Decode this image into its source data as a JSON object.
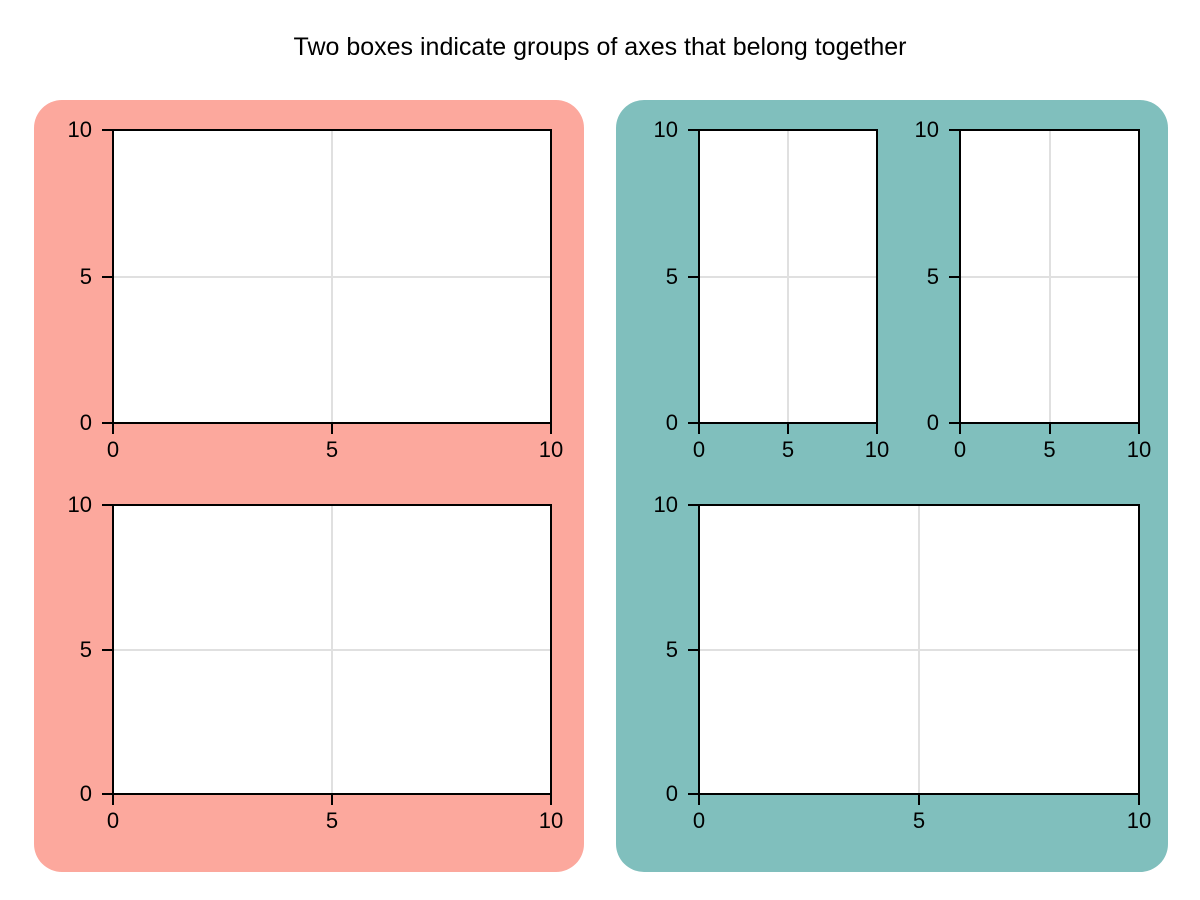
{
  "colors": {
    "background": "#FFFFFF",
    "title_text": "#000000",
    "tick_text": "#000000",
    "spine": "#000000",
    "grid": "#E0E0E0",
    "box_salmon": "#FCA89D",
    "box_teal": "#80BFBD"
  },
  "chart_data": {
    "type": "layout",
    "title": "Two boxes indicate groups of axes that belong together",
    "description": "Five empty axes arranged in two colored group boxes; all axes show x and y ranges 0 to 10 with ticks at 0, 5, 10 and light interior gridlines at 5.",
    "legend": null,
    "groups": [
      {
        "id": "group-1",
        "side": "left",
        "box_color": "#FCA89D",
        "axes_ids": [
          "ax1",
          "ax2"
        ]
      },
      {
        "id": "group-2",
        "side": "right",
        "box_color": "#80BFBD",
        "axes_ids": [
          "ax3",
          "ax4",
          "ax5"
        ]
      }
    ],
    "axes": [
      {
        "id": "ax1",
        "group": "group-1",
        "slot": "top",
        "xlim": [
          0,
          10
        ],
        "ylim": [
          0,
          10
        ],
        "xticks": [
          0,
          5,
          10
        ],
        "xticklabels": [
          "0",
          "5",
          "10"
        ],
        "yticks": [
          0,
          5,
          10
        ],
        "yticklabels": [
          "0",
          "5",
          "10"
        ],
        "grid": true,
        "series": []
      },
      {
        "id": "ax2",
        "group": "group-1",
        "slot": "bottom",
        "xlim": [
          0,
          10
        ],
        "ylim": [
          0,
          10
        ],
        "xticks": [
          0,
          5,
          10
        ],
        "xticklabels": [
          "0",
          "5",
          "10"
        ],
        "yticks": [
          0,
          5,
          10
        ],
        "yticklabels": [
          "0",
          "5",
          "10"
        ],
        "grid": true,
        "series": []
      },
      {
        "id": "ax3",
        "group": "group-2",
        "slot": "top-left",
        "xlim": [
          0,
          10
        ],
        "ylim": [
          0,
          10
        ],
        "xticks": [
          0,
          5,
          10
        ],
        "xticklabels": [
          "0",
          "5",
          "10"
        ],
        "yticks": [
          0,
          5,
          10
        ],
        "yticklabels": [
          "0",
          "5",
          "10"
        ],
        "grid": true,
        "series": []
      },
      {
        "id": "ax4",
        "group": "group-2",
        "slot": "top-right",
        "xlim": [
          0,
          10
        ],
        "ylim": [
          0,
          10
        ],
        "xticks": [
          0,
          5,
          10
        ],
        "xticklabels": [
          "0",
          "5",
          "10"
        ],
        "yticks": [
          0,
          5,
          10
        ],
        "yticklabels": [
          "0",
          "5",
          "10"
        ],
        "grid": true,
        "series": []
      },
      {
        "id": "ax5",
        "group": "group-2",
        "slot": "bottom",
        "xlim": [
          0,
          10
        ],
        "ylim": [
          0,
          10
        ],
        "xticks": [
          0,
          5,
          10
        ],
        "xticklabels": [
          "0",
          "5",
          "10"
        ],
        "yticks": [
          0,
          5,
          10
        ],
        "yticklabels": [
          "0",
          "5",
          "10"
        ],
        "grid": true,
        "series": []
      }
    ]
  }
}
